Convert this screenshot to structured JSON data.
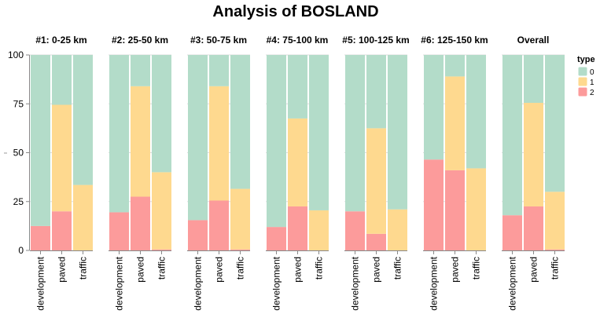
{
  "chart_data": {
    "type": "bar",
    "stacked": true,
    "normalized": true,
    "title": "Analysis of BOSLAND",
    "ylim": [
      0,
      100
    ],
    "yticks": [
      0,
      25,
      50,
      75,
      100
    ],
    "grid": true,
    "legend_position": "top-right",
    "legend": {
      "title": "type",
      "entries": [
        {
          "label": "0",
          "color": "#b3dcc9"
        },
        {
          "label": "1",
          "color": "#fed98f"
        },
        {
          "label": "2",
          "color": "#fc9b9b"
        }
      ]
    },
    "categories": [
      "development",
      "paved",
      "traffic"
    ],
    "facets": [
      {
        "title": "#1: 0-25 km",
        "bars": [
          {
            "category": "development",
            "type2": 12.5,
            "type1": 0,
            "type0": 87.5
          },
          {
            "category": "paved",
            "type2": 20,
            "type1": 54.5,
            "type0": 25.5
          },
          {
            "category": "traffic",
            "type2": 0,
            "type1": 33.5,
            "type0": 66.5
          }
        ]
      },
      {
        "title": "#2: 25-50 km",
        "bars": [
          {
            "category": "development",
            "type2": 19.5,
            "type1": 0,
            "type0": 80.5
          },
          {
            "category": "paved",
            "type2": 27.5,
            "type1": 56.5,
            "type0": 16
          },
          {
            "category": "traffic",
            "type2": 0.5,
            "type1": 39.5,
            "type0": 60
          }
        ]
      },
      {
        "title": "#3: 50-75 km",
        "bars": [
          {
            "category": "development",
            "type2": 15.5,
            "type1": 0,
            "type0": 84.5
          },
          {
            "category": "paved",
            "type2": 25.5,
            "type1": 58.5,
            "type0": 16
          },
          {
            "category": "traffic",
            "type2": 0.5,
            "type1": 31,
            "type0": 68.5
          }
        ]
      },
      {
        "title": "#4: 75-100 km",
        "bars": [
          {
            "category": "development",
            "type2": 12,
            "type1": 0,
            "type0": 88
          },
          {
            "category": "paved",
            "type2": 22.5,
            "type1": 45,
            "type0": 32.5
          },
          {
            "category": "traffic",
            "type2": 0,
            "type1": 20.5,
            "type0": 79.5
          }
        ]
      },
      {
        "title": "#5: 100-125 km",
        "bars": [
          {
            "category": "development",
            "type2": 20,
            "type1": 0,
            "type0": 80
          },
          {
            "category": "paved",
            "type2": 8.5,
            "type1": 54,
            "type0": 37.5
          },
          {
            "category": "traffic",
            "type2": 0,
            "type1": 21,
            "type0": 79
          }
        ]
      },
      {
        "title": "#6: 125-150 km",
        "bars": [
          {
            "category": "development",
            "type2": 46.5,
            "type1": 0,
            "type0": 53.5
          },
          {
            "category": "paved",
            "type2": 41,
            "type1": 48,
            "type0": 11
          },
          {
            "category": "traffic",
            "type2": 0,
            "type1": 42,
            "type0": 58
          }
        ]
      },
      {
        "title": "Overall",
        "bars": [
          {
            "category": "development",
            "type2": 18,
            "type1": 0,
            "type0": 82
          },
          {
            "category": "paved",
            "type2": 22.5,
            "type1": 53,
            "type0": 24.5
          },
          {
            "category": "traffic",
            "type2": 0.5,
            "type1": 29.5,
            "type0": 70
          }
        ]
      }
    ]
  }
}
